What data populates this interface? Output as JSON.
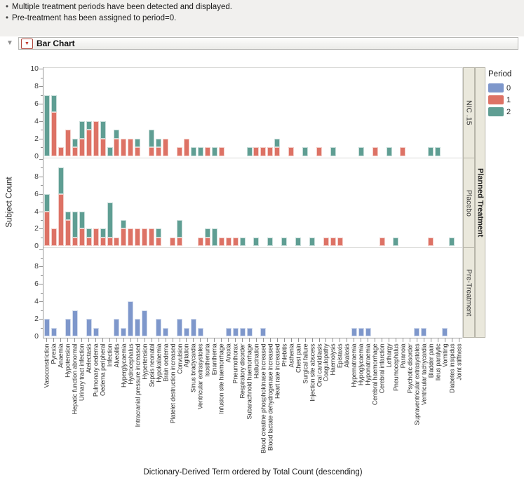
{
  "notes": [
    "Multiple treatment periods have been detected and displayed.",
    "Pre-treatment has been assigned to period=0."
  ],
  "outline": {
    "title": "Bar Chart"
  },
  "chart_data": {
    "type": "bar",
    "stacked": true,
    "grid": false,
    "xlabel": "Dictionary-Derived Term ordered by Total Count (descending)",
    "ylabel": "Subject Count",
    "ylim": [
      0,
      10
    ],
    "panel_group_label": "Planned Treatment",
    "legend": {
      "title": "Period",
      "position": "right",
      "items": [
        {
          "period": "0",
          "color": "#7e97cb"
        },
        {
          "period": "1",
          "color": "#dd7265"
        },
        {
          "period": "2",
          "color": "#5f9e93"
        }
      ]
    },
    "categories": [
      "Vasoconstriction",
      "Pyrexia",
      "Anaemia",
      "Hypotension",
      "Hepatic function abnormal",
      "Urinary tract infection",
      "Atelectasis",
      "Pulmonary oedema",
      "Oedema peripheral",
      "Infection",
      "Alveolitis",
      "Hyperglycaemia",
      "Hydrocephalus",
      "Intracranial pressure increased",
      "Hypertension",
      "Sepsis neonatal",
      "Hypokalaemia",
      "Brain oedema",
      "Platelet destruction increased",
      "Convulsion",
      "Agitation",
      "Sinus bradycardia",
      "Ventricular extrasystoles",
      "Isosthenuria",
      "Enanthema",
      "Infusion site haemorrhage",
      "Anoxia",
      "Pneumothorax",
      "Respiratory disorder",
      "Subarachnoid haemorrhage",
      "Hallucination",
      "Blood creatine phosphokinase increased",
      "Blood lactate dehydrogenase increased",
      "Heart rate increased",
      "Phlebitis",
      "Asthenia",
      "Chest pain",
      "Surgical failure",
      "Injection site abscess",
      "Oral candidiasis",
      "Coagulopathy",
      "Haemolysis",
      "Epistaxis",
      "Alkalosis",
      "Hypernatraemia",
      "Hypoglycaemia",
      "Hyponatraemia",
      "Cerebral haemorrhage",
      "Cerebral infarction",
      "Lethargy",
      "Pneumocephalus",
      "Paranoia",
      "Psychotic disorder",
      "Supraventricular extrasystoles",
      "Ventricular tachycardia",
      "Bladder pain",
      "Ileus paralytic",
      "Vomiting",
      "Diabetes insipidus",
      "Joint stiffness"
    ],
    "panels": [
      {
        "label": "NIC .15",
        "yticks": [
          0,
          2,
          4,
          6,
          8,
          10
        ],
        "series": [
          {
            "period": "1",
            "values": [
              0,
              5,
              1,
              3,
              1,
              2,
              3,
              4,
              2,
              0,
              2,
              2,
              2,
              1,
              0,
              1,
              1,
              2,
              0,
              1,
              2,
              0,
              0,
              1,
              0,
              1,
              0,
              0,
              0,
              0,
              1,
              1,
              1,
              1,
              0,
              1,
              0,
              0,
              0,
              1,
              0,
              0,
              0,
              0,
              0,
              0,
              0,
              1,
              0,
              0,
              0,
              1,
              0,
              0,
              0,
              0,
              0,
              0,
              0,
              0
            ]
          },
          {
            "period": "2",
            "values": [
              7,
              2,
              0,
              0,
              1,
              2,
              1,
              0,
              2,
              1,
              1,
              0,
              0,
              1,
              0,
              2,
              1,
              0,
              0,
              0,
              0,
              1,
              1,
              0,
              1,
              0,
              0,
              0,
              0,
              1,
              0,
              0,
              0,
              1,
              0,
              0,
              0,
              1,
              0,
              0,
              0,
              1,
              0,
              0,
              0,
              1,
              0,
              0,
              0,
              1,
              0,
              0,
              0,
              0,
              0,
              1,
              1,
              0,
              0,
              0
            ]
          }
        ]
      },
      {
        "label": "Placebo",
        "yticks": [
          0,
          2,
          4,
          6,
          8
        ],
        "series": [
          {
            "period": "1",
            "values": [
              4,
              2,
              6,
              3,
              1,
              2,
              1,
              2,
              1,
              1,
              1,
              2,
              2,
              2,
              2,
              2,
              1,
              0,
              1,
              1,
              0,
              0,
              1,
              1,
              0,
              1,
              1,
              1,
              0,
              0,
              0,
              0,
              0,
              0,
              0,
              0,
              0,
              0,
              0,
              0,
              1,
              1,
              1,
              0,
              0,
              0,
              0,
              0,
              1,
              0,
              0,
              0,
              0,
              0,
              0,
              1,
              0,
              0,
              0,
              0
            ]
          },
          {
            "period": "2",
            "values": [
              2,
              0,
              3,
              1,
              3,
              2,
              1,
              0,
              1,
              4,
              0,
              1,
              0,
              0,
              0,
              0,
              1,
              0,
              0,
              2,
              0,
              0,
              0,
              1,
              2,
              0,
              0,
              0,
              1,
              0,
              1,
              0,
              1,
              0,
              1,
              0,
              1,
              0,
              1,
              0,
              0,
              0,
              0,
              0,
              0,
              0,
              0,
              0,
              0,
              0,
              1,
              0,
              0,
              0,
              0,
              0,
              0,
              0,
              1,
              0
            ]
          }
        ]
      },
      {
        "label": "Pre-Treatment",
        "yticks": [
          0,
          2,
          4,
          6,
          8
        ],
        "series": [
          {
            "period": "0",
            "values": [
              2,
              1,
              0,
              2,
              3,
              0,
              2,
              1,
              0,
              0,
              2,
              1,
              4,
              2,
              3,
              0,
              2,
              1,
              0,
              2,
              1,
              2,
              1,
              0,
              0,
              0,
              1,
              1,
              1,
              1,
              0,
              1,
              0,
              0,
              0,
              0,
              0,
              0,
              0,
              0,
              0,
              0,
              0,
              0,
              1,
              1,
              1,
              0,
              0,
              0,
              0,
              0,
              0,
              1,
              1,
              0,
              0,
              1,
              0,
              0
            ]
          }
        ]
      }
    ]
  }
}
